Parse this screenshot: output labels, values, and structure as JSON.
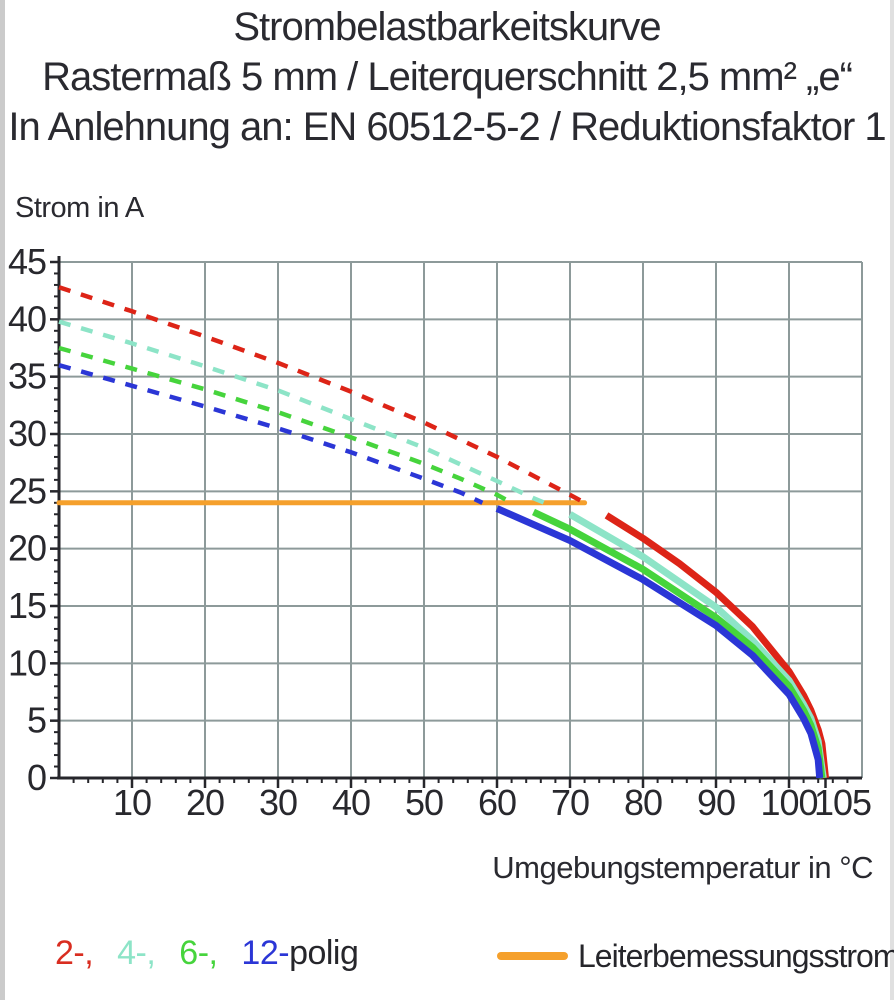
{
  "title": {
    "line1": "Strombelastbarkeitskurve",
    "line2": "Rastermaß 5 mm / Leiterquerschnitt 2,5 mm² „e“",
    "line3": "In Anlehnung an: EN 60512-5-2 / Reduktionsfaktor 1"
  },
  "axes": {
    "y_label": "Strom in A",
    "x_label": "Umgebungstemperatur in °C"
  },
  "legend": {
    "pole_items": [
      {
        "label": "2-,",
        "color": "#d92d20"
      },
      {
        "label": "4-,",
        "color": "#8de4c7"
      },
      {
        "label": "6-,",
        "color": "#46d43c"
      },
      {
        "label": "12-",
        "color": "#2b36d6"
      }
    ],
    "pole_suffix": "polig",
    "limit_label": "Leiterbemessungsstrom",
    "limit_color": "#f5a02c"
  },
  "chart_data": {
    "type": "line",
    "title": "Strombelastbarkeitskurve, Rastermaß 5 mm, Leiterquerschnitt 2,5 mm² „e“, EN 60512-5-2, Reduktionsfaktor 1",
    "xlabel": "Umgebungstemperatur in °C",
    "ylabel": "Strom in A",
    "xlim": [
      0,
      110
    ],
    "ylim": [
      0,
      45
    ],
    "x_major_ticks": [
      10,
      20,
      30,
      40,
      50,
      60,
      70,
      80,
      90,
      100,
      105
    ],
    "x_minor_step": 2,
    "y_major_ticks": [
      0,
      5,
      10,
      15,
      20,
      25,
      30,
      35,
      40,
      45
    ],
    "y_minor_step": 1,
    "grid": true,
    "grid_color": "#8d9a9a",
    "axis_color": "#26262b",
    "style_rule": "curves are dashed above the 24 A limit line and solid below it",
    "limit_line": {
      "name": "Leiterbemessungsstrom",
      "value_A": 24,
      "x_start": 0,
      "x_end": 72,
      "color": "#f5a02c"
    },
    "series": [
      {
        "name": "2-polig",
        "color": "#dd2417",
        "points": [
          [
            0,
            42.8
          ],
          [
            10,
            40.7
          ],
          [
            20,
            38.5
          ],
          [
            30,
            36.2
          ],
          [
            40,
            33.7
          ],
          [
            50,
            31.0
          ],
          [
            60,
            28.0
          ],
          [
            70,
            24.7
          ],
          [
            72,
            24.0
          ],
          [
            75,
            22.9
          ],
          [
            80,
            20.9
          ],
          [
            85,
            18.7
          ],
          [
            90,
            16.2
          ],
          [
            95,
            13.2
          ],
          [
            100,
            9.3
          ],
          [
            102,
            7.2
          ],
          [
            103,
            5.9
          ],
          [
            104,
            4.2
          ],
          [
            104.5,
            3.0
          ],
          [
            105,
            0
          ]
        ]
      },
      {
        "name": "4-polig",
        "color": "#8de4c7",
        "points": [
          [
            0,
            39.8
          ],
          [
            10,
            37.9
          ],
          [
            20,
            35.9
          ],
          [
            30,
            33.8
          ],
          [
            40,
            31.3
          ],
          [
            50,
            28.8
          ],
          [
            60,
            25.9
          ],
          [
            65,
            24.4
          ],
          [
            66.5,
            24.0
          ],
          [
            70,
            23.0
          ],
          [
            80,
            19.3
          ],
          [
            90,
            14.9
          ],
          [
            95,
            12.0
          ],
          [
            100,
            8.5
          ],
          [
            102,
            6.4
          ],
          [
            103,
            5.2
          ],
          [
            104,
            3.2
          ],
          [
            104.7,
            0
          ]
        ]
      },
      {
        "name": "6-polig",
        "color": "#46d43c",
        "points": [
          [
            0,
            37.5
          ],
          [
            10,
            35.7
          ],
          [
            20,
            33.9
          ],
          [
            30,
            31.9
          ],
          [
            40,
            29.7
          ],
          [
            50,
            27.4
          ],
          [
            55,
            26.1
          ],
          [
            60,
            24.7
          ],
          [
            62,
            24.0
          ],
          [
            65,
            23.2
          ],
          [
            70,
            21.7
          ],
          [
            80,
            18.2
          ],
          [
            90,
            14.0
          ],
          [
            95,
            11.4
          ],
          [
            100,
            8.0
          ],
          [
            102,
            5.9
          ],
          [
            103,
            4.6
          ],
          [
            104,
            2.6
          ],
          [
            104.5,
            0
          ]
        ]
      },
      {
        "name": "12-polig",
        "color": "#2b36d6",
        "points": [
          [
            0,
            36.0
          ],
          [
            10,
            34.2
          ],
          [
            20,
            32.4
          ],
          [
            30,
            30.5
          ],
          [
            40,
            28.4
          ],
          [
            50,
            26.1
          ],
          [
            55,
            24.9
          ],
          [
            58,
            24.0
          ],
          [
            60,
            23.5
          ],
          [
            70,
            20.7
          ],
          [
            80,
            17.3
          ],
          [
            90,
            13.3
          ],
          [
            95,
            10.7
          ],
          [
            100,
            7.3
          ],
          [
            102,
            5.2
          ],
          [
            103,
            3.9
          ],
          [
            104,
            1.6
          ],
          [
            104.2,
            0
          ]
        ]
      }
    ]
  }
}
